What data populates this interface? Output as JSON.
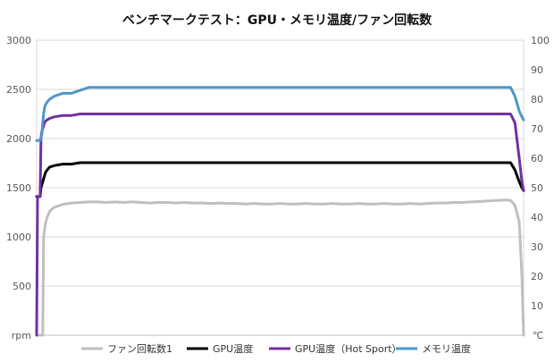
{
  "chart_data": {
    "type": "line",
    "title": "ベンチマークテスト：GPU・メモリ温度/ファン回転数",
    "left_axis": {
      "unit_label": "rpm",
      "ylim": [
        0,
        3000
      ],
      "ticks": [
        "500",
        "1000",
        "1500",
        "2000",
        "2500",
        "3000"
      ]
    },
    "right_axis": {
      "unit_label": "℃",
      "ylim": [
        0,
        100
      ],
      "ticks": [
        "10",
        "20",
        "30",
        "40",
        "50",
        "60",
        "70",
        "80",
        "90",
        "100"
      ]
    },
    "grid": true,
    "legend_position": "bottom",
    "x": [
      0,
      1,
      2,
      3,
      4,
      5,
      6,
      7,
      8,
      9,
      10,
      12,
      15,
      20,
      30,
      40,
      50,
      60,
      70,
      80,
      90,
      100,
      110,
      120,
      130,
      140,
      150,
      160,
      170,
      180,
      190,
      200,
      210,
      220,
      230,
      240,
      250,
      260,
      270,
      280,
      290,
      300,
      310,
      320,
      330,
      340,
      350,
      360,
      370,
      380,
      390,
      400,
      410,
      420,
      430,
      440,
      450,
      460,
      470,
      480,
      490,
      500,
      510,
      520,
      530,
      540,
      545,
      550,
      555,
      558,
      560
    ],
    "series": [
      {
        "name": "ファン回転数1",
        "axis": "left",
        "color": "#bfbfbf",
        "values": [
          0,
          0,
          0,
          0,
          0,
          0,
          0,
          0,
          1000,
          1070,
          1130,
          1200,
          1260,
          1300,
          1330,
          1345,
          1350,
          1355,
          1355,
          1350,
          1355,
          1350,
          1355,
          1350,
          1345,
          1350,
          1350,
          1345,
          1350,
          1345,
          1345,
          1340,
          1345,
          1340,
          1340,
          1335,
          1340,
          1335,
          1335,
          1340,
          1335,
          1335,
          1340,
          1335,
          1335,
          1340,
          1335,
          1335,
          1340,
          1335,
          1335,
          1340,
          1335,
          1335,
          1340,
          1335,
          1340,
          1345,
          1345,
          1350,
          1350,
          1355,
          1360,
          1365,
          1370,
          1375,
          1370,
          1320,
          1150,
          600,
          0
        ]
      },
      {
        "name": "GPU温度",
        "axis": "right",
        "color": "#000000",
        "values": [
          47,
          47,
          47,
          47,
          47,
          50,
          51,
          52,
          53,
          54,
          55,
          56,
          57,
          57.5,
          58,
          58,
          58.5,
          58.5,
          58.5,
          58.5,
          58.5,
          58.5,
          58.5,
          58.5,
          58.5,
          58.5,
          58.5,
          58.5,
          58.5,
          58.5,
          58.5,
          58.5,
          58.5,
          58.5,
          58.5,
          58.5,
          58.5,
          58.5,
          58.5,
          58.5,
          58.5,
          58.5,
          58.5,
          58.5,
          58.5,
          58.5,
          58.5,
          58.5,
          58.5,
          58.5,
          58.5,
          58.5,
          58.5,
          58.5,
          58.5,
          58.5,
          58.5,
          58.5,
          58.5,
          58.5,
          58.5,
          58.5,
          58.5,
          58.5,
          58.5,
          58.5,
          58.5,
          56,
          52,
          50,
          49
        ]
      },
      {
        "name": "GPU温度（Hot Sport）",
        "axis": "right",
        "color": "#7030a0",
        "values": [
          0,
          47,
          47,
          47,
          47,
          67,
          69,
          70,
          71,
          72,
          72.5,
          73,
          73.5,
          74,
          74.5,
          74.5,
          75,
          75,
          75,
          75,
          75,
          75,
          75,
          75,
          75,
          75,
          75,
          75,
          75,
          75,
          75,
          75,
          75,
          75,
          75,
          75,
          75,
          75,
          75,
          75,
          75,
          75,
          75,
          75,
          75,
          75,
          75,
          75,
          75,
          75,
          75,
          75,
          75,
          75,
          75,
          75,
          75,
          75,
          75,
          75,
          75,
          75,
          75,
          75,
          75,
          75,
          75,
          72,
          60,
          52,
          49
        ]
      },
      {
        "name": "メモリ温度",
        "axis": "right",
        "color": "#4f97c8",
        "values": [
          66,
          66,
          66,
          66,
          66,
          67,
          68,
          72,
          75,
          77,
          78,
          79,
          80,
          81,
          82,
          82,
          83,
          84,
          84,
          84,
          84,
          84,
          84,
          84,
          84,
          84,
          84,
          84,
          84,
          84,
          84,
          84,
          84,
          84,
          84,
          84,
          84,
          84,
          84,
          84,
          84,
          84,
          84,
          84,
          84,
          84,
          84,
          84,
          84,
          84,
          84,
          84,
          84,
          84,
          84,
          84,
          84,
          84,
          84,
          84,
          84,
          84,
          84,
          84,
          84,
          84,
          84,
          81,
          76,
          74,
          73
        ]
      }
    ]
  }
}
